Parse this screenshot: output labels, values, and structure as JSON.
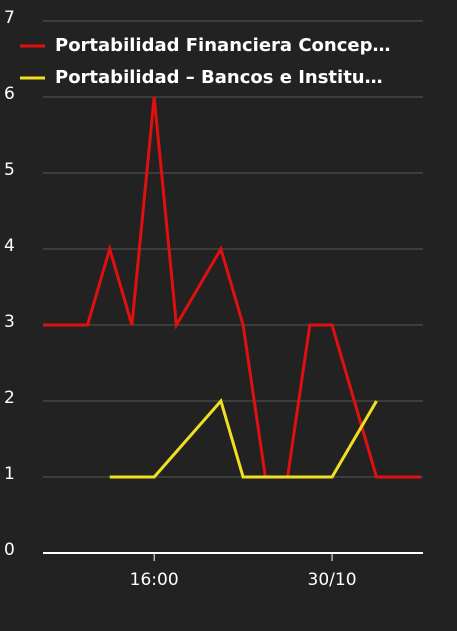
{
  "chart_data": {
    "type": "line",
    "series": [
      {
        "name": "Portabilidad Financiera Concep…",
        "color": "#e01010",
        "x": [
          0,
          2,
          3,
          4,
          5,
          6,
          8,
          9,
          10,
          11,
          12,
          13,
          15,
          17
        ],
        "values": [
          3,
          3,
          4,
          3,
          6,
          3,
          4,
          3,
          1,
          1,
          3,
          3,
          1,
          1
        ]
      },
      {
        "name": "Portabilidad – Bancos e Institu…",
        "color": "#f0e020",
        "x": [
          3,
          5,
          8,
          9,
          13,
          15
        ],
        "values": [
          1,
          1,
          2,
          1,
          1,
          2
        ]
      }
    ],
    "xlim": [
      0,
      17
    ],
    "xticks": [
      {
        "value": 5,
        "label": "16:00"
      },
      {
        "value": 13,
        "label": "30/10"
      }
    ],
    "ylim": [
      0,
      7
    ],
    "yticks": [
      0,
      1,
      2,
      3,
      4,
      5,
      6,
      7
    ],
    "grid": true
  }
}
